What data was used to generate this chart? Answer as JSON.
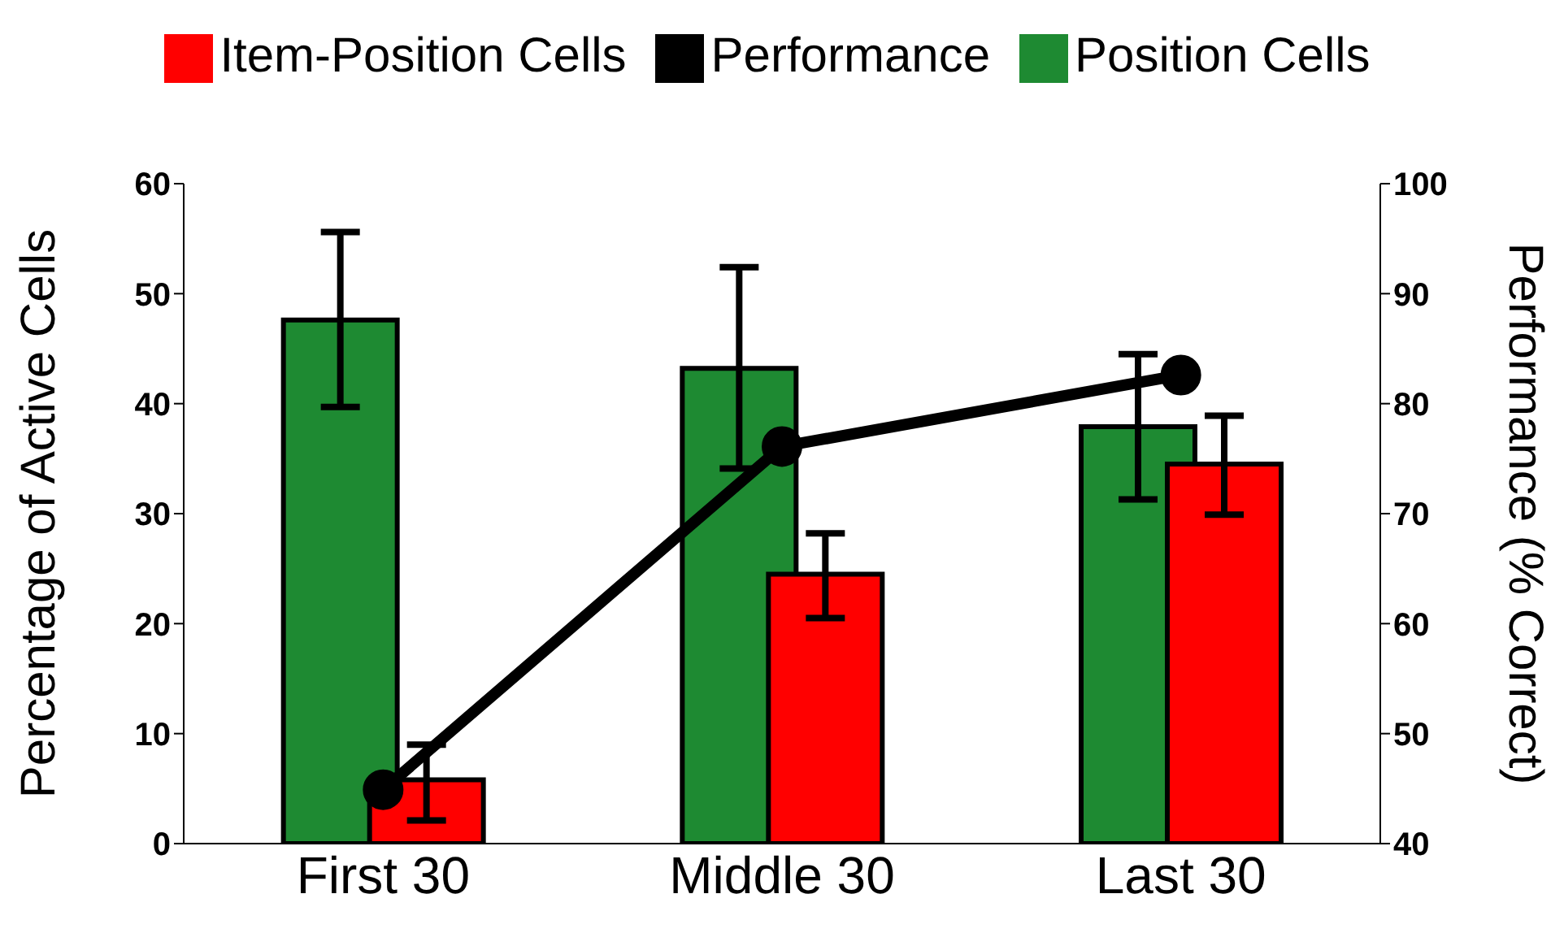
{
  "chart_data": {
    "type": "bar",
    "categories": [
      "First 30",
      "Middle 30",
      "Last 30"
    ],
    "ylabel": "Percentage of Active Cells",
    "y2label": "Performance (% Correct)",
    "ylim": [
      0,
      60
    ],
    "yticks": [
      0,
      10,
      20,
      30,
      40,
      50,
      60
    ],
    "y2lim": [
      40,
      100
    ],
    "y2ticks": [
      40,
      50,
      60,
      70,
      80,
      90,
      100
    ],
    "legend": "top",
    "grid": false,
    "series": [
      {
        "name": "Performance",
        "type": "line",
        "axis": "y2",
        "color": "#000000",
        "marker": "circle",
        "values": [
          44.9,
          76.1,
          82.6
        ]
      },
      {
        "name": "Position Cells",
        "color": "#1e8a32",
        "values": [
          47.6,
          43.2,
          37.9
        ],
        "errors": [
          [
            39.7,
            55.6
          ],
          [
            34.1,
            52.4
          ],
          [
            31.3,
            44.5
          ]
        ]
      },
      {
        "name": "Item-Position Cells",
        "color": "#ff0000",
        "values": [
          5.8,
          24.5,
          34.5
        ],
        "errors": [
          [
            2.1,
            9.0
          ],
          [
            20.5,
            28.2
          ],
          [
            29.9,
            38.9
          ]
        ]
      }
    ]
  }
}
